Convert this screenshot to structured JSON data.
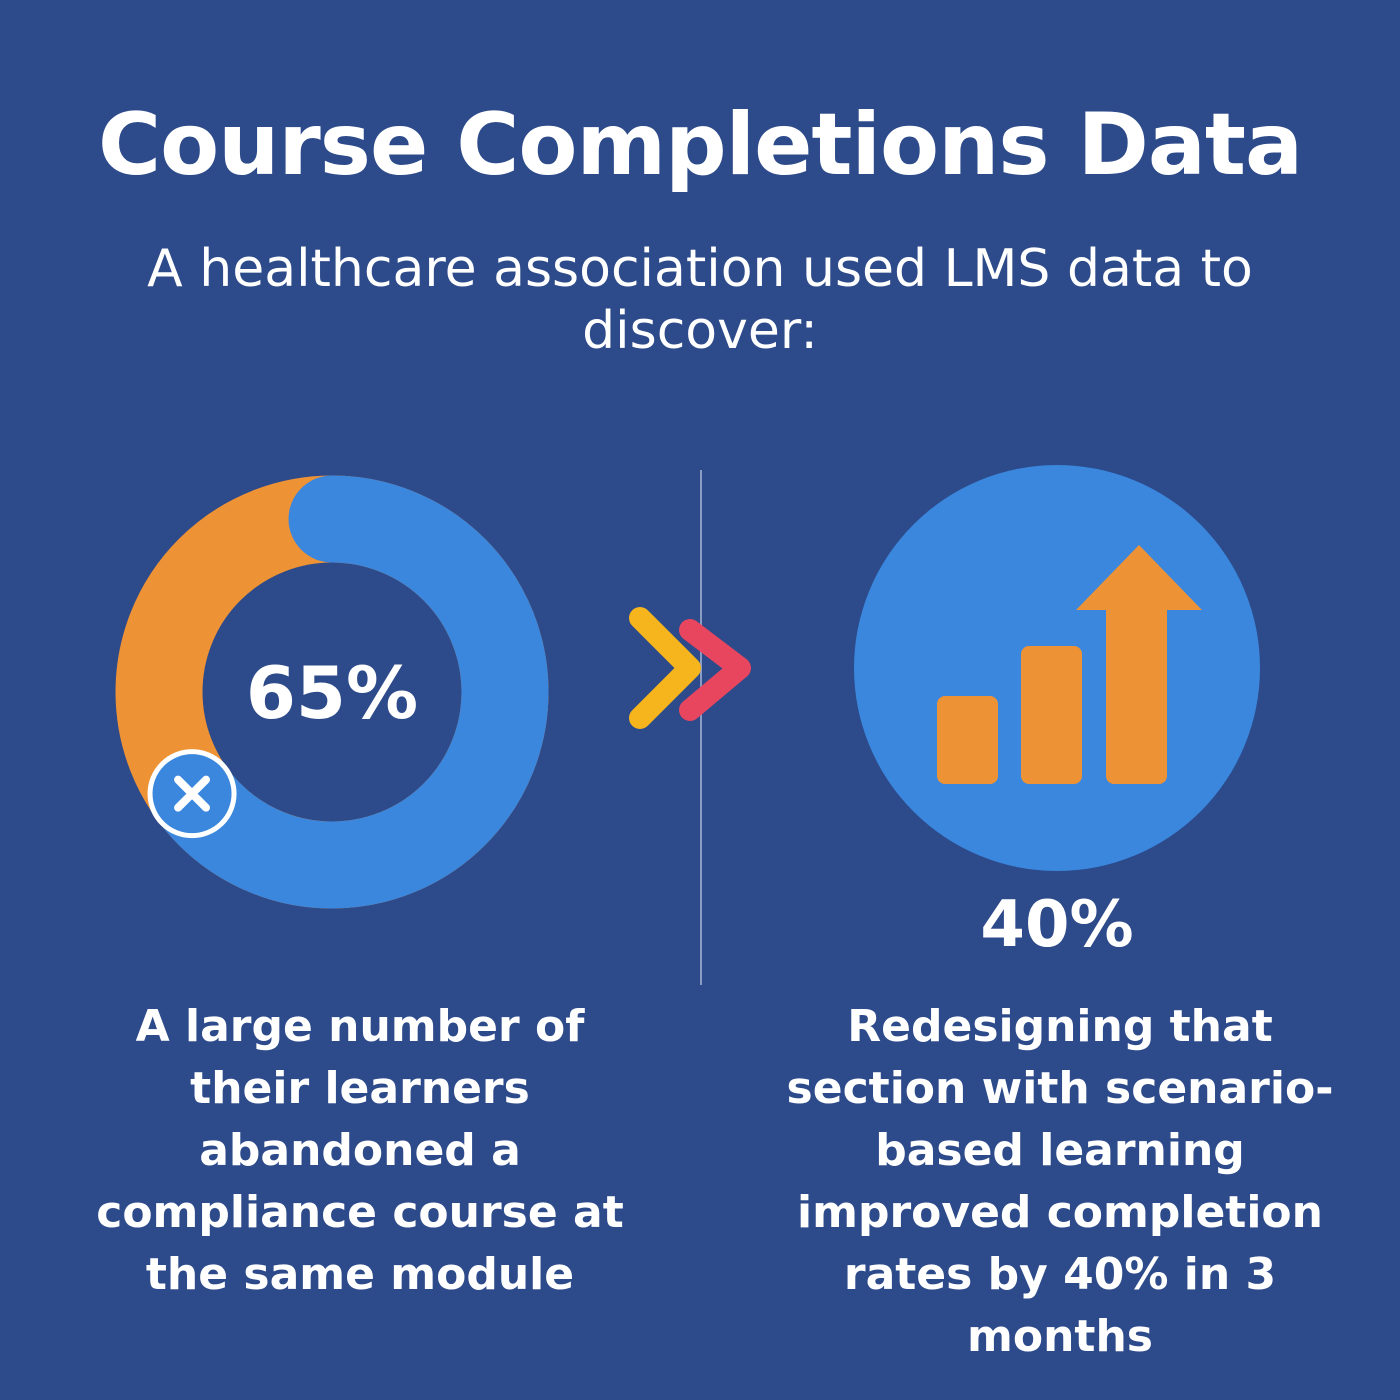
{
  "header": {
    "title": "Course Completions Data",
    "subtitle": "A healthcare association used LMS data to discover:"
  },
  "left": {
    "value": 65,
    "value_label": "65%",
    "caption": "A large number of their learners abandoned a compliance course at the same module"
  },
  "right": {
    "value_label": "40%",
    "caption": "Redesigning that section with scenario-based learning improved completion rates by 40% in 3 months"
  }
}
